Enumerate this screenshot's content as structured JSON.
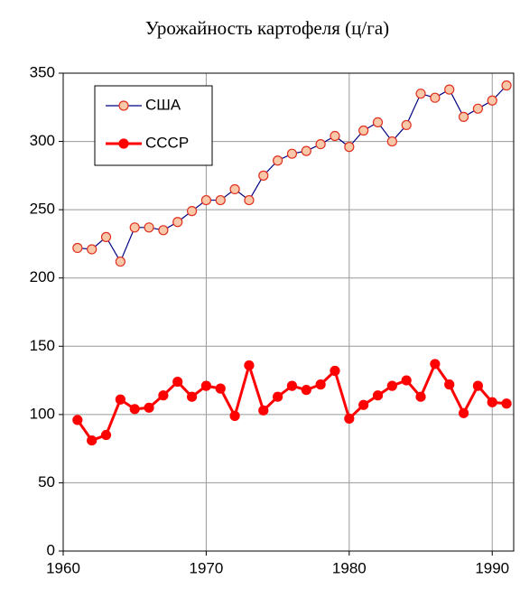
{
  "chart_data": {
    "type": "line",
    "title": "Урожайность картофеля (ц/га)",
    "x": [
      1961,
      1962,
      1963,
      1964,
      1965,
      1966,
      1967,
      1968,
      1969,
      1970,
      1971,
      1972,
      1973,
      1974,
      1975,
      1976,
      1977,
      1978,
      1979,
      1980,
      1981,
      1982,
      1983,
      1984,
      1985,
      1986,
      1987,
      1988,
      1989,
      1990,
      1991
    ],
    "series": [
      {
        "name": "США",
        "color": "#000080",
        "marker_fill": "#f8c8a8",
        "marker_stroke": "#e03020",
        "values": [
          222,
          221,
          230,
          212,
          237,
          237,
          235,
          241,
          249,
          257,
          257,
          265,
          257,
          275,
          286,
          291,
          293,
          298,
          304,
          296,
          308,
          314,
          300,
          312,
          335,
          332,
          338,
          318,
          324,
          330,
          341
        ]
      },
      {
        "name": "СССР",
        "color": "#ff0000",
        "marker_fill": "#ff0000",
        "marker_stroke": "#ff0000",
        "values": [
          96,
          81,
          85,
          111,
          104,
          105,
          114,
          124,
          113,
          121,
          119,
          99,
          136,
          103,
          113,
          121,
          118,
          122,
          132,
          97,
          107,
          114,
          121,
          125,
          113,
          137,
          122,
          101,
          121,
          109,
          108
        ]
      }
    ],
    "xlim": [
      1960,
      1991.5
    ],
    "xticks": [
      1960,
      1970,
      1980,
      1990
    ],
    "ylim": [
      0,
      350
    ],
    "yticks": [
      0,
      50,
      100,
      150,
      200,
      250,
      300,
      350
    ],
    "grid": true,
    "legend": "upper left"
  }
}
